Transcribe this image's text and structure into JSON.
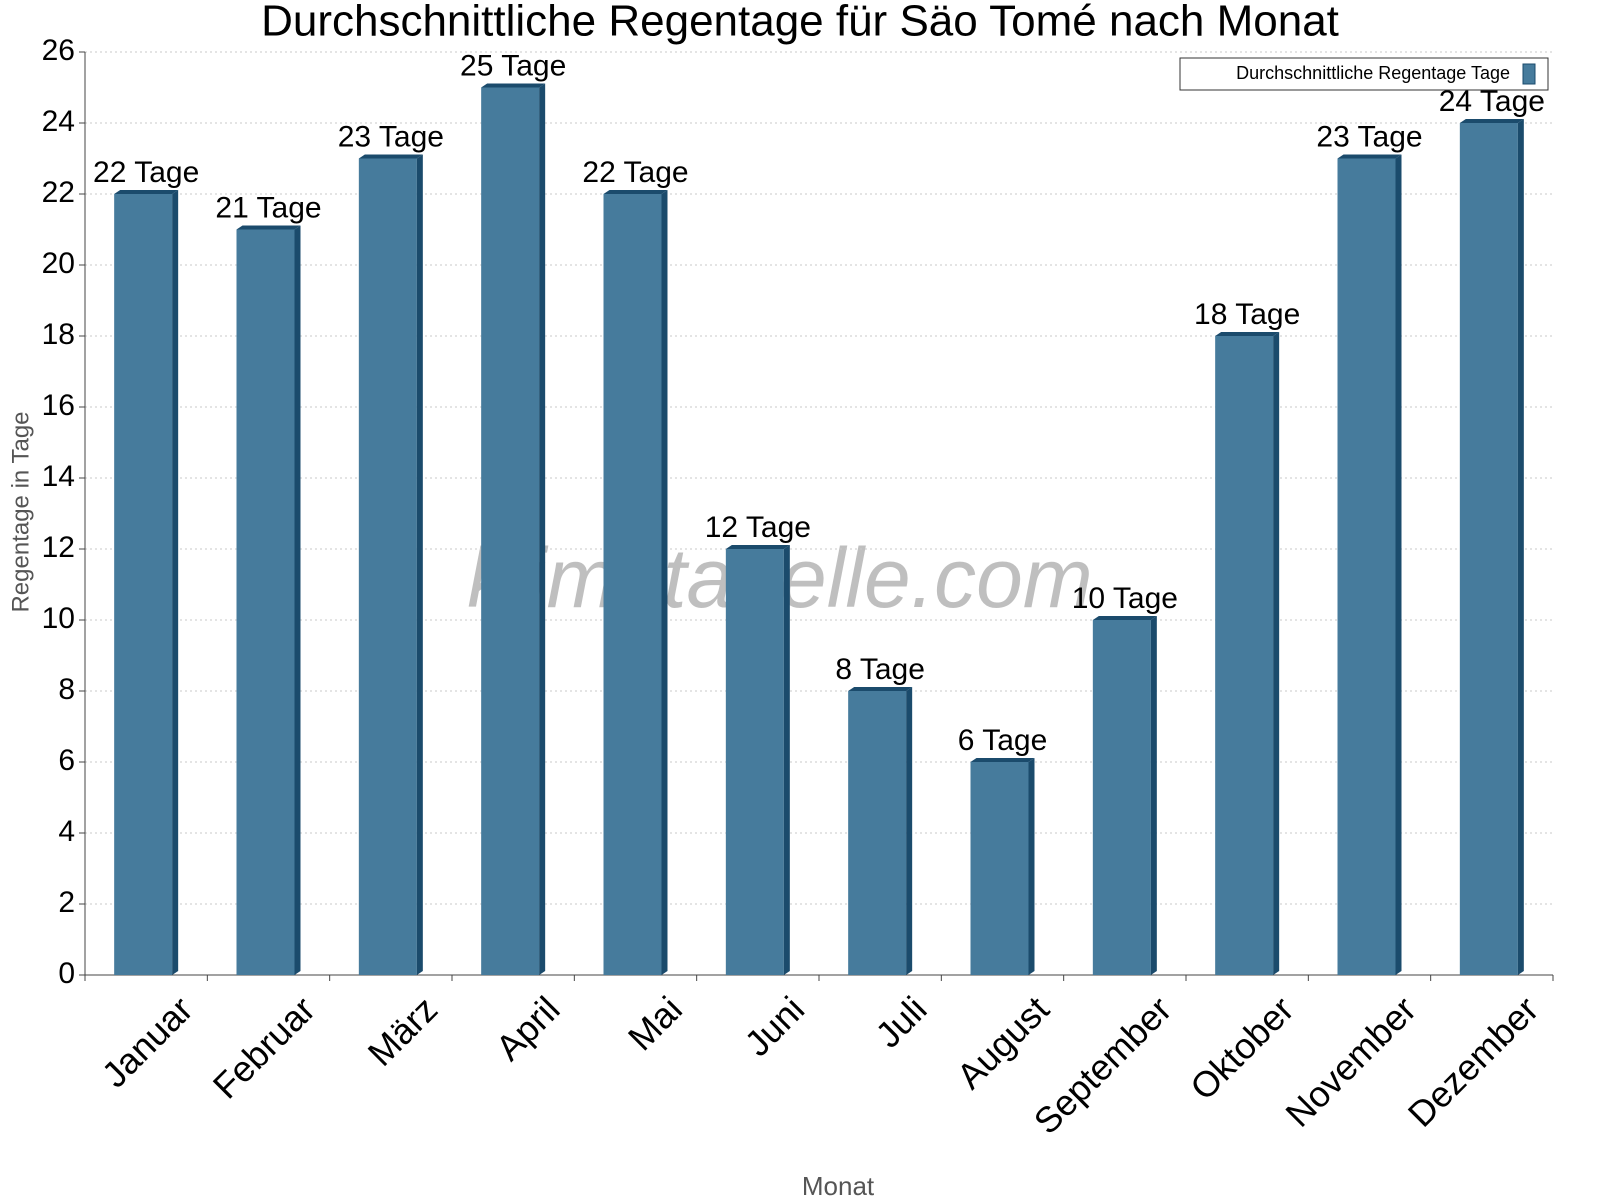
{
  "chart_data": {
    "type": "bar",
    "title": "Durchschnittliche Regentage für Säo Tomé nach Monat",
    "xlabel": "Monat",
    "ylabel": "Regentage in Tage",
    "watermark": "klimatabelle.com",
    "categories": [
      "Januar",
      "Februar",
      "März",
      "April",
      "Mai",
      "Juni",
      "Juli",
      "August",
      "September",
      "Oktober",
      "November",
      "Dezember"
    ],
    "series": [
      {
        "name": "Durchschnittliche Regentage Tage",
        "color": "#467b9c",
        "values": [
          22,
          21,
          23,
          25,
          22,
          12,
          8,
          6,
          10,
          18,
          23,
          24
        ],
        "value_labels": [
          "22 Tage",
          "21 Tage",
          "23 Tage",
          "25 Tage",
          "22 Tage",
          "12 Tage",
          "8 Tage",
          "6 Tage",
          "10 Tage",
          "18 Tage",
          "23 Tage",
          "24 Tage"
        ]
      }
    ],
    "ylim": [
      0,
      26
    ],
    "yticks": [
      0,
      2,
      4,
      6,
      8,
      10,
      12,
      14,
      16,
      18,
      20,
      22,
      24,
      26
    ],
    "grid": true,
    "legend": "top-right"
  }
}
